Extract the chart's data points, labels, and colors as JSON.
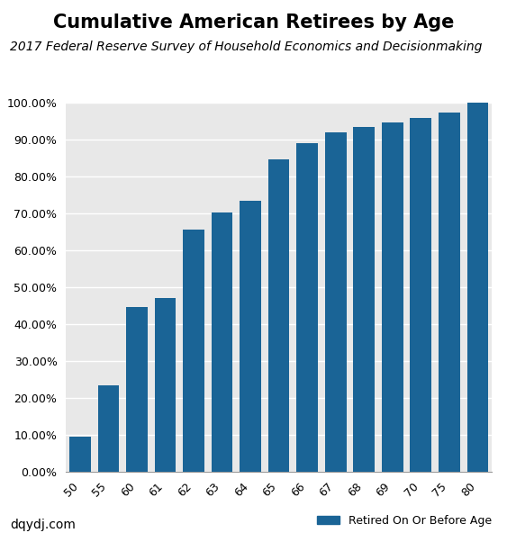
{
  "title": "Cumulative American Retirees by Age",
  "subtitle": "2017 Federal Reserve Survey of Household Economics and Decisionmaking",
  "categories": [
    "50",
    "55",
    "60",
    "61",
    "62",
    "63",
    "64",
    "65",
    "66",
    "67",
    "68",
    "69",
    "70",
    "75",
    "80"
  ],
  "values": [
    0.094,
    0.234,
    0.447,
    0.472,
    0.657,
    0.703,
    0.735,
    0.848,
    0.891,
    0.92,
    0.935,
    0.946,
    0.96,
    0.975,
    1.0
  ],
  "bar_color": "#1a6496",
  "background_color": "#e8e8e8",
  "ylim": [
    0,
    1.0
  ],
  "yticks": [
    0.0,
    0.1,
    0.2,
    0.3,
    0.4,
    0.5,
    0.6,
    0.7,
    0.8,
    0.9,
    1.0
  ],
  "ytick_labels": [
    "0.00%",
    "10.00%",
    "20.00%",
    "30.00%",
    "40.00%",
    "50.00%",
    "60.00%",
    "70.00%",
    "80.00%",
    "90.00%",
    "100.00%"
  ],
  "watermark": "dqydj.com",
  "legend_label": "Retired On Or Before Age",
  "title_fontsize": 15,
  "subtitle_fontsize": 10,
  "ylabel_fontsize": 10,
  "tick_fontsize": 9,
  "watermark_fontsize": 10
}
